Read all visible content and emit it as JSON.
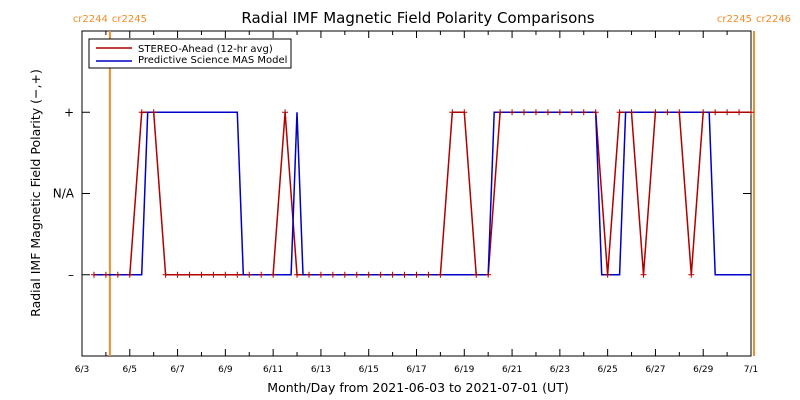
{
  "chart_data": {
    "type": "line",
    "title": "Radial IMF Magnetic Field Polarity Comparisons",
    "xlabel": "Month/Day from 2021-06-03 to 2021-07-01 (UT)",
    "ylabel": "Radial IMF Magnetic Field Polarity (−,+)",
    "xlim": [
      "2021-06-03",
      "2021-07-01"
    ],
    "ylim": [
      -2,
      2
    ],
    "x_tick_labels": [
      "6/3",
      "6/5",
      "6/7",
      "6/9",
      "6/11",
      "6/13",
      "6/15",
      "6/17",
      "6/19",
      "6/21",
      "6/23",
      "6/25",
      "6/27",
      "6/29",
      "7/1"
    ],
    "y_ticks": [
      {
        "value": 1,
        "label": "+"
      },
      {
        "value": 0,
        "label": "N/A"
      },
      {
        "value": -1,
        "label": "–"
      }
    ],
    "legend": {
      "position": "top-left"
    },
    "rotation_markers": [
      {
        "x": "2021-06-04T04:00",
        "label_left": "cr2244",
        "label_right": "cr2245"
      },
      {
        "x": "2021-07-01T03:00",
        "label_left": "cr2245",
        "label_right": "cr2246"
      }
    ],
    "series": [
      {
        "name": "STEREO-Ahead (12-hr avg)",
        "color": "#b00000",
        "markers": true,
        "points": [
          [
            "2021-06-03T12:00",
            -1
          ],
          [
            "2021-06-04T00:00",
            -1
          ],
          [
            "2021-06-04T12:00",
            -1
          ],
          [
            "2021-06-05T00:00",
            -1
          ],
          [
            "2021-06-05T12:00",
            1
          ],
          [
            "2021-06-06T00:00",
            1
          ],
          [
            "2021-06-06T12:00",
            -1
          ],
          [
            "2021-06-07T00:00",
            -1
          ],
          [
            "2021-06-07T12:00",
            -1
          ],
          [
            "2021-06-08T00:00",
            -1
          ],
          [
            "2021-06-08T12:00",
            -1
          ],
          [
            "2021-06-09T00:00",
            -1
          ],
          [
            "2021-06-09T12:00",
            -1
          ],
          [
            "2021-06-10T00:00",
            -1
          ],
          [
            "2021-06-10T12:00",
            -1
          ],
          [
            "2021-06-11T00:00",
            -1
          ],
          [
            "2021-06-11T12:00",
            1
          ],
          [
            "2021-06-12T00:00",
            -1
          ],
          [
            "2021-06-12T12:00",
            -1
          ],
          [
            "2021-06-13T00:00",
            -1
          ],
          [
            "2021-06-13T12:00",
            -1
          ],
          [
            "2021-06-14T00:00",
            -1
          ],
          [
            "2021-06-14T12:00",
            -1
          ],
          [
            "2021-06-15T00:00",
            -1
          ],
          [
            "2021-06-15T12:00",
            -1
          ],
          [
            "2021-06-16T00:00",
            -1
          ],
          [
            "2021-06-16T12:00",
            -1
          ],
          [
            "2021-06-17T00:00",
            -1
          ],
          [
            "2021-06-17T12:00",
            -1
          ],
          [
            "2021-06-18T00:00",
            -1
          ],
          [
            "2021-06-18T12:00",
            1
          ],
          [
            "2021-06-19T00:00",
            1
          ],
          [
            "2021-06-19T12:00",
            -1
          ],
          [
            "2021-06-20T00:00",
            -1
          ],
          [
            "2021-06-20T12:00",
            1
          ],
          [
            "2021-06-21T00:00",
            1
          ],
          [
            "2021-06-21T12:00",
            1
          ],
          [
            "2021-06-22T00:00",
            1
          ],
          [
            "2021-06-22T12:00",
            1
          ],
          [
            "2021-06-23T00:00",
            1
          ],
          [
            "2021-06-23T12:00",
            1
          ],
          [
            "2021-06-24T00:00",
            1
          ],
          [
            "2021-06-24T12:00",
            1
          ],
          [
            "2021-06-25T00:00",
            -1
          ],
          [
            "2021-06-25T12:00",
            1
          ],
          [
            "2021-06-26T00:00",
            1
          ],
          [
            "2021-06-26T12:00",
            -1
          ],
          [
            "2021-06-27T00:00",
            1
          ],
          [
            "2021-06-27T12:00",
            1
          ],
          [
            "2021-06-28T00:00",
            1
          ],
          [
            "2021-06-28T12:00",
            -1
          ],
          [
            "2021-06-29T00:00",
            1
          ],
          [
            "2021-06-29T12:00",
            1
          ],
          [
            "2021-06-30T00:00",
            1
          ],
          [
            "2021-06-30T12:00",
            1
          ],
          [
            "2021-07-01T00:00",
            1
          ]
        ]
      },
      {
        "name": "Predictive Science MAS Model",
        "color": "#0000c8",
        "markers": false,
        "points": [
          [
            "2021-06-03T12:00",
            -1
          ],
          [
            "2021-06-05T12:00",
            -1
          ],
          [
            "2021-06-05T18:00",
            1
          ],
          [
            "2021-06-09T12:00",
            1
          ],
          [
            "2021-06-09T18:00",
            -1
          ],
          [
            "2021-06-11T18:00",
            -1
          ],
          [
            "2021-06-12T00:00",
            1
          ],
          [
            "2021-06-12T06:00",
            -1
          ],
          [
            "2021-06-20T00:00",
            -1
          ],
          [
            "2021-06-20T06:00",
            1
          ],
          [
            "2021-06-24T12:00",
            1
          ],
          [
            "2021-06-24T18:00",
            -1
          ],
          [
            "2021-06-25T12:00",
            -1
          ],
          [
            "2021-06-25T18:00",
            1
          ],
          [
            "2021-06-29T06:00",
            1
          ],
          [
            "2021-06-29T12:00",
            -1
          ],
          [
            "2021-07-01T00:00",
            -1
          ]
        ]
      }
    ]
  }
}
